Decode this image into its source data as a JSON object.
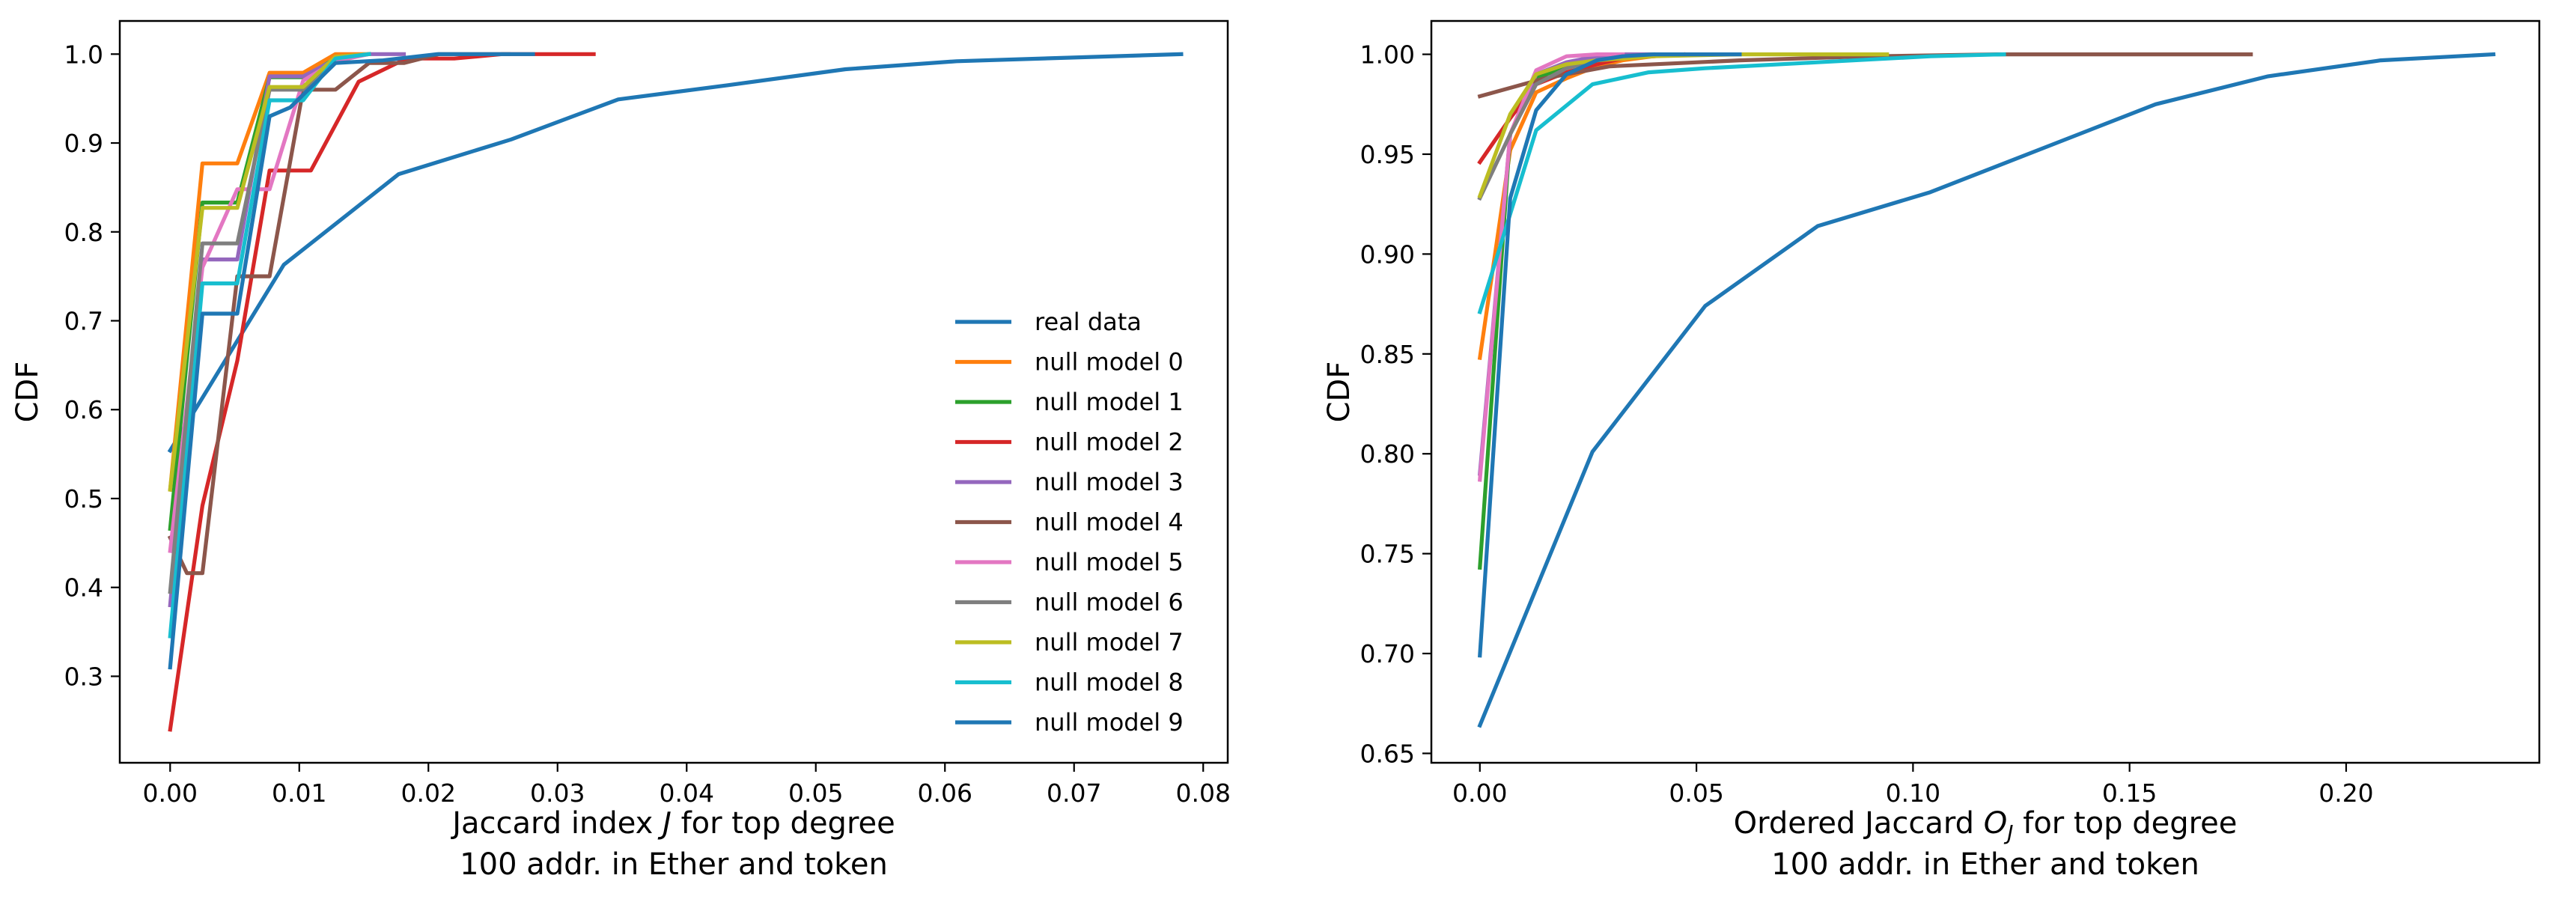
{
  "colors": {
    "real data": "#1f77b4",
    "null model 0": "#ff7f0e",
    "null model 1": "#2ca02c",
    "null model 2": "#d62728",
    "null model 3": "#9467bd",
    "null model 4": "#8c564b",
    "null model 5": "#e377c2",
    "null model 6": "#7f7f7f",
    "null model 7": "#bcbd22",
    "null model 8": "#17becf",
    "null model 9": "#1f77b4"
  },
  "chart_data": [
    {
      "type": "line",
      "ylabel": "CDF",
      "xlabel": [
        "Jaccard index J  for top degree",
        "100 addr. in Ether and token"
      ],
      "xlim": [
        -0.0039,
        0.0819
      ],
      "ylim": [
        0.2027,
        1.0373
      ],
      "xticks": [
        0.0,
        0.01,
        0.02,
        0.03,
        0.04,
        0.05,
        0.06,
        0.07,
        0.08
      ],
      "xtick_labels": [
        "0.00",
        "0.01",
        "0.02",
        "0.03",
        "0.04",
        "0.05",
        "0.06",
        "0.07",
        "0.08"
      ],
      "yticks": [
        0.3,
        0.4,
        0.5,
        0.6,
        0.7,
        0.8,
        0.9,
        1.0
      ],
      "ytick_labels": [
        "0.3",
        "0.4",
        "0.5",
        "0.6",
        "0.7",
        "0.8",
        "0.9",
        "1.0"
      ],
      "legend": {
        "placement": "lower-right",
        "entries": [
          "real data",
          "null model 0",
          "null model 1",
          "null model 2",
          "null model 3",
          "null model 4",
          "null model 5",
          "null model 6",
          "null model 7",
          "null model 8",
          "null model 9"
        ]
      },
      "series": [
        {
          "name": "real data",
          "x": [
            0.0,
            0.0088,
            0.0177,
            0.0264,
            0.0347,
            0.0432,
            0.0523,
            0.0609,
            0.0697,
            0.0783
          ],
          "y": [
            0.554,
            0.763,
            0.865,
            0.904,
            0.949,
            0.965,
            0.983,
            0.992,
            0.996,
            1.0
          ]
        },
        {
          "name": "null model 0",
          "x": [
            0.0,
            0.0025,
            0.0052,
            0.0077,
            0.0103,
            0.0128,
            0.0154
          ],
          "y": [
            0.51,
            0.877,
            0.877,
            0.979,
            0.979,
            1.0,
            1.0
          ]
        },
        {
          "name": "null model 1",
          "x": [
            0.0,
            0.0025,
            0.0052,
            0.0077,
            0.0103,
            0.0128,
            0.0154
          ],
          "y": [
            0.466,
            0.833,
            0.833,
            0.974,
            0.974,
            0.995,
            1.0
          ]
        },
        {
          "name": "null model 2",
          "x": [
            0.0,
            0.0025,
            0.0052,
            0.0077,
            0.0109,
            0.0146,
            0.0183,
            0.022,
            0.0257,
            0.0293,
            0.0328
          ],
          "y": [
            0.24,
            0.492,
            0.655,
            0.869,
            0.869,
            0.969,
            0.995,
            0.995,
            1.0,
            1.0,
            1.0
          ]
        },
        {
          "name": "null model 3",
          "x": [
            0.0,
            0.0025,
            0.0052,
            0.0077,
            0.0103,
            0.0128,
            0.0154,
            0.0181
          ],
          "y": [
            0.38,
            0.769,
            0.769,
            0.975,
            0.975,
            0.994,
            1.0,
            1.0
          ]
        },
        {
          "name": "null model 4",
          "x": [
            0.0,
            0.0013,
            0.0025,
            0.0052,
            0.0077,
            0.0103,
            0.0128,
            0.0154,
            0.0181,
            0.0208,
            0.0235,
            0.0262
          ],
          "y": [
            0.456,
            0.416,
            0.416,
            0.75,
            0.75,
            0.96,
            0.96,
            0.99,
            0.99,
            1.0,
            1.0,
            1.0
          ]
        },
        {
          "name": "null model 5",
          "x": [
            0.0,
            0.0025,
            0.0052,
            0.0077,
            0.0103,
            0.0128,
            0.0154
          ],
          "y": [
            0.441,
            0.76,
            0.848,
            0.848,
            0.97,
            0.992,
            1.0
          ]
        },
        {
          "name": "null model 6",
          "x": [
            0.0,
            0.0025,
            0.0052,
            0.0077,
            0.0103,
            0.0128,
            0.0154
          ],
          "y": [
            0.395,
            0.787,
            0.787,
            0.96,
            0.96,
            0.997,
            1.0
          ]
        },
        {
          "name": "null model 7",
          "x": [
            0.0,
            0.0025,
            0.0052,
            0.0077,
            0.0103,
            0.0128,
            0.0154
          ],
          "y": [
            0.51,
            0.827,
            0.827,
            0.963,
            0.963,
            0.997,
            1.0
          ]
        },
        {
          "name": "null model 8",
          "x": [
            0.0,
            0.0025,
            0.0052,
            0.0077,
            0.0103,
            0.0128,
            0.0154
          ],
          "y": [
            0.345,
            0.742,
            0.742,
            0.948,
            0.948,
            0.995,
            1.0
          ]
        },
        {
          "name": "null model 9",
          "x": [
            0.0,
            0.0025,
            0.0052,
            0.0077,
            0.0093,
            0.0128,
            0.0165,
            0.0207,
            0.0244,
            0.0281
          ],
          "y": [
            0.31,
            0.708,
            0.708,
            0.93,
            0.94,
            0.99,
            0.993,
            1.0,
            1.0,
            1.0
          ]
        }
      ]
    },
    {
      "type": "line",
      "ylabel": "CDF",
      "xlabel": [
        "Ordered Jaccard O_J for top degree",
        "100 addr. in Ether and token"
      ],
      "xlim": [
        -0.0112,
        0.2446
      ],
      "ylim": [
        0.6453,
        1.0167
      ],
      "xticks": [
        0.0,
        0.05,
        0.1,
        0.15,
        0.2
      ],
      "xtick_labels": [
        "0.00",
        "0.05",
        "0.10",
        "0.15",
        "0.20"
      ],
      "yticks": [
        0.65,
        0.7,
        0.75,
        0.8,
        0.85,
        0.9,
        0.95,
        1.0
      ],
      "ytick_labels": [
        "0.65",
        "0.70",
        "0.75",
        "0.80",
        "0.85",
        "0.90",
        "0.95",
        "1.00"
      ],
      "series": [
        {
          "name": "real data",
          "x": [
            0.0,
            0.026,
            0.052,
            0.078,
            0.104,
            0.13,
            0.156,
            0.182,
            0.208,
            0.234
          ],
          "y": [
            0.664,
            0.801,
            0.874,
            0.914,
            0.931,
            0.953,
            0.975,
            0.989,
            0.997,
            1.0
          ]
        },
        {
          "name": "null model 0",
          "x": [
            0.0,
            0.007,
            0.013,
            0.02,
            0.027,
            0.033,
            0.04,
            0.047
          ],
          "y": [
            0.848,
            0.952,
            0.981,
            0.988,
            0.994,
            0.997,
            0.999,
            1.0
          ]
        },
        {
          "name": "null model 1",
          "x": [
            0.0,
            0.007,
            0.013,
            0.02,
            0.027,
            0.033,
            0.04,
            0.047
          ],
          "y": [
            0.743,
            0.96,
            0.988,
            0.994,
            0.997,
            0.999,
            1.0,
            1.0
          ]
        },
        {
          "name": "null model 2",
          "x": [
            0.0,
            0.007,
            0.013,
            0.02,
            0.027,
            0.033,
            0.04,
            0.047
          ],
          "y": [
            0.946,
            0.968,
            0.985,
            0.991,
            0.995,
            0.998,
            0.999,
            1.0
          ]
        },
        {
          "name": "null model 3",
          "x": [
            0.0,
            0.007,
            0.013,
            0.02,
            0.027,
            0.033,
            0.04
          ],
          "y": [
            0.79,
            0.96,
            0.99,
            0.996,
            0.999,
            1.0,
            1.0
          ]
        },
        {
          "name": "null model 4",
          "x": [
            0.0,
            0.015,
            0.03,
            0.06,
            0.09,
            0.12,
            0.15,
            0.178
          ],
          "y": [
            0.979,
            0.988,
            0.994,
            0.997,
            0.999,
            1.0,
            1.0,
            1.0
          ]
        },
        {
          "name": "null model 5",
          "x": [
            0.0,
            0.007,
            0.013,
            0.02,
            0.027,
            0.033
          ],
          "y": [
            0.787,
            0.96,
            0.992,
            0.999,
            1.0,
            1.0
          ]
        },
        {
          "name": "null model 6",
          "x": [
            0.0,
            0.007,
            0.013,
            0.02,
            0.027,
            0.033,
            0.04
          ],
          "y": [
            0.928,
            0.96,
            0.985,
            0.993,
            0.997,
            0.999,
            1.0
          ]
        },
        {
          "name": "null model 7",
          "x": [
            0.0,
            0.007,
            0.013,
            0.02,
            0.027,
            0.04,
            0.06,
            0.094
          ],
          "y": [
            0.929,
            0.97,
            0.99,
            0.995,
            0.997,
            0.999,
            1.0,
            1.0
          ]
        },
        {
          "name": "null model 8",
          "x": [
            0.0,
            0.013,
            0.026,
            0.039,
            0.052,
            0.078,
            0.104,
            0.121
          ],
          "y": [
            0.871,
            0.962,
            0.985,
            0.991,
            0.993,
            0.996,
            0.999,
            1.0
          ]
        },
        {
          "name": "null model 9",
          "x": [
            0.0,
            0.007,
            0.013,
            0.02,
            0.027,
            0.033,
            0.04,
            0.047,
            0.06
          ],
          "y": [
            0.699,
            0.928,
            0.972,
            0.99,
            0.997,
            0.999,
            1.0,
            1.0,
            1.0
          ]
        }
      ]
    }
  ]
}
